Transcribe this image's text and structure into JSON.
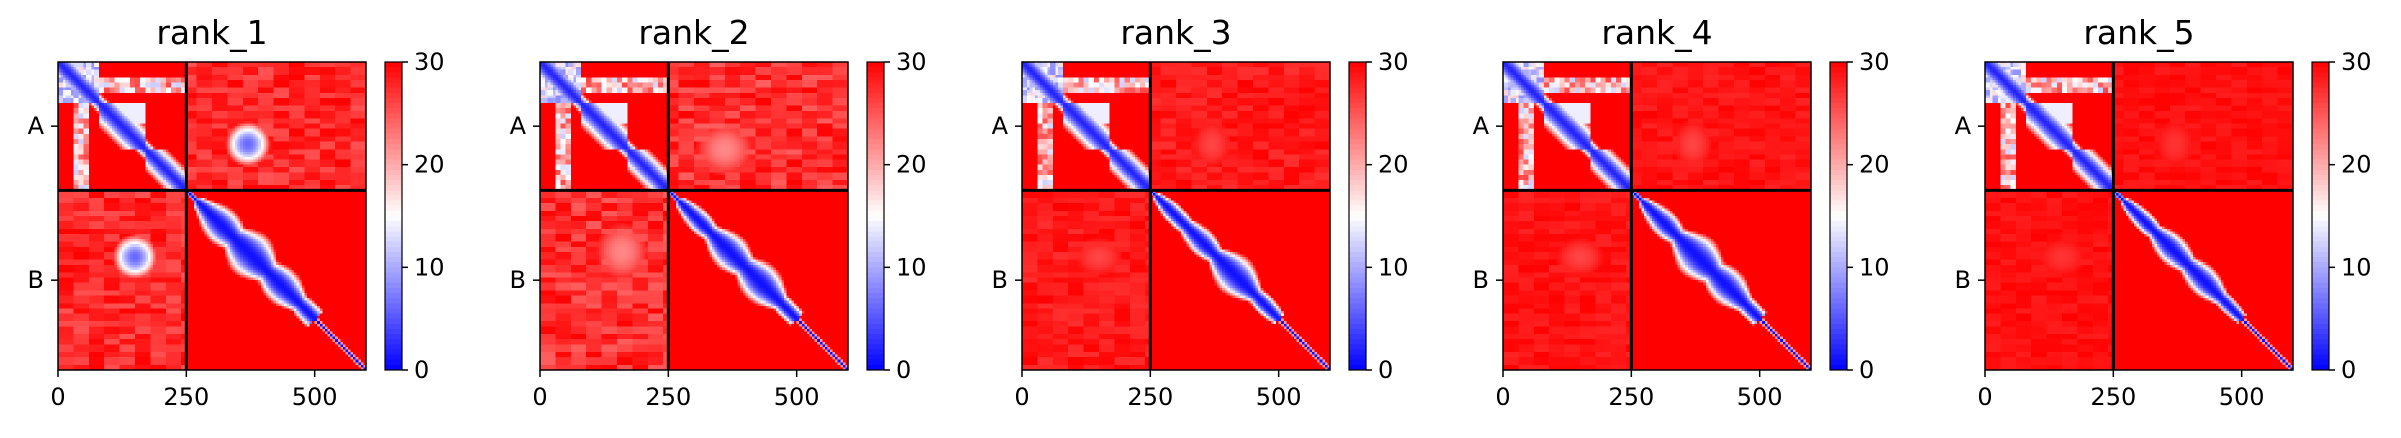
{
  "colors": {
    "low": "#0000ff",
    "mid": "#ffffff",
    "high": "#ff0000",
    "divider": "#000000"
  },
  "chart_data": [
    {
      "type": "heatmap",
      "title": "rank_1",
      "xlabel": "",
      "ylabel": "",
      "xlim": [
        0,
        600
      ],
      "ylim": [
        600,
        0
      ],
      "xticks": [
        "0",
        "250",
        "500"
      ],
      "yticks": [
        "A",
        "B"
      ],
      "chain_boundary": 250,
      "colorbar": {
        "range": [
          0,
          30
        ],
        "ticks": [
          "0",
          "10",
          "20",
          "30"
        ],
        "colormap": "bwr"
      },
      "features": {
        "offdiag_blob": {
          "center": [
            370,
            160
          ],
          "radius": [
            45,
            45
          ],
          "value": 6
        },
        "interchain_haze": 0.35,
        "chain_b_contacts": [
          [
            300,
            340,
            55
          ],
          [
            350,
            400,
            70
          ],
          [
            420,
            450,
            55
          ],
          [
            470,
            510,
            35
          ]
        ],
        "chain_a_blocks": [
          [
            0,
            80,
            4
          ],
          [
            80,
            170,
            6
          ],
          [
            170,
            250,
            10
          ]
        ]
      }
    },
    {
      "type": "heatmap",
      "title": "rank_2",
      "xlabel": "",
      "ylabel": "",
      "xlim": [
        0,
        600
      ],
      "ylim": [
        600,
        0
      ],
      "xticks": [
        "0",
        "250",
        "500"
      ],
      "yticks": [
        "A",
        "B"
      ],
      "chain_boundary": 250,
      "colorbar": {
        "range": [
          0,
          30
        ],
        "ticks": [
          "0",
          "10",
          "20",
          "30"
        ],
        "colormap": "bwr"
      },
      "features": {
        "offdiag_blob": {
          "center": [
            360,
            170
          ],
          "radius": [
            60,
            55
          ],
          "value": 22
        },
        "interchain_haze": 0.4,
        "chain_b_contacts": [
          [
            300,
            320,
            35
          ],
          [
            360,
            380,
            55
          ],
          [
            420,
            440,
            60
          ],
          [
            470,
            500,
            30
          ]
        ],
        "chain_a_blocks": [
          [
            0,
            80,
            4
          ],
          [
            80,
            170,
            6
          ],
          [
            170,
            250,
            10
          ]
        ]
      }
    },
    {
      "type": "heatmap",
      "title": "rank_3",
      "xlabel": "",
      "ylabel": "",
      "xlim": [
        0,
        600
      ],
      "ylim": [
        600,
        0
      ],
      "xticks": [
        "0",
        "250",
        "500"
      ],
      "yticks": [
        "A",
        "B"
      ],
      "chain_boundary": 250,
      "colorbar": {
        "range": [
          0,
          30
        ],
        "ticks": [
          "0",
          "10",
          "20",
          "30"
        ],
        "colormap": "bwr"
      },
      "features": {
        "offdiag_blob": {
          "center": [
            370,
            160
          ],
          "radius": [
            40,
            50
          ],
          "value": 26
        },
        "interchain_haze": 0.2,
        "chain_b_contacts": [
          [
            290,
            310,
            30
          ],
          [
            340,
            360,
            40
          ],
          [
            400,
            430,
            60
          ],
          [
            460,
            490,
            30
          ]
        ],
        "chain_a_blocks": [
          [
            0,
            80,
            4
          ],
          [
            80,
            170,
            6
          ],
          [
            170,
            250,
            10
          ]
        ]
      }
    },
    {
      "type": "heatmap",
      "title": "rank_4",
      "xlabel": "",
      "ylabel": "",
      "xlim": [
        0,
        600
      ],
      "ylim": [
        600,
        0
      ],
      "xticks": [
        "0",
        "250",
        "500"
      ],
      "yticks": [
        "A",
        "B"
      ],
      "chain_boundary": 250,
      "colorbar": {
        "range": [
          0,
          30
        ],
        "ticks": [
          "0",
          "10",
          "20",
          "30"
        ],
        "colormap": "bwr"
      },
      "features": {
        "offdiag_blob": {
          "center": [
            370,
            160
          ],
          "radius": [
            40,
            50
          ],
          "value": 26
        },
        "interchain_haze": 0.15,
        "chain_b_contacts": [
          [
            300,
            330,
            40
          ],
          [
            360,
            400,
            65
          ],
          [
            420,
            450,
            55
          ],
          [
            470,
            500,
            30
          ]
        ],
        "chain_a_blocks": [
          [
            0,
            80,
            4
          ],
          [
            80,
            170,
            6
          ],
          [
            170,
            250,
            10
          ]
        ]
      }
    },
    {
      "type": "heatmap",
      "title": "rank_5",
      "xlabel": "",
      "ylabel": "",
      "xlim": [
        0,
        600
      ],
      "ylim": [
        600,
        0
      ],
      "xticks": [
        "0",
        "250",
        "500"
      ],
      "yticks": [
        "A",
        "B"
      ],
      "chain_boundary": 250,
      "colorbar": {
        "range": [
          0,
          30
        ],
        "ticks": [
          "0",
          "10",
          "20",
          "30"
        ],
        "colormap": "bwr"
      },
      "features": {
        "offdiag_blob": {
          "center": [
            370,
            160
          ],
          "radius": [
            40,
            50
          ],
          "value": 27
        },
        "interchain_haze": 0.12,
        "chain_b_contacts": [
          [
            300,
            320,
            30
          ],
          [
            350,
            380,
            45
          ],
          [
            410,
            440,
            45
          ],
          [
            460,
            490,
            25
          ]
        ],
        "chain_a_blocks": [
          [
            0,
            80,
            4
          ],
          [
            80,
            170,
            6
          ],
          [
            170,
            250,
            10
          ]
        ]
      }
    }
  ]
}
